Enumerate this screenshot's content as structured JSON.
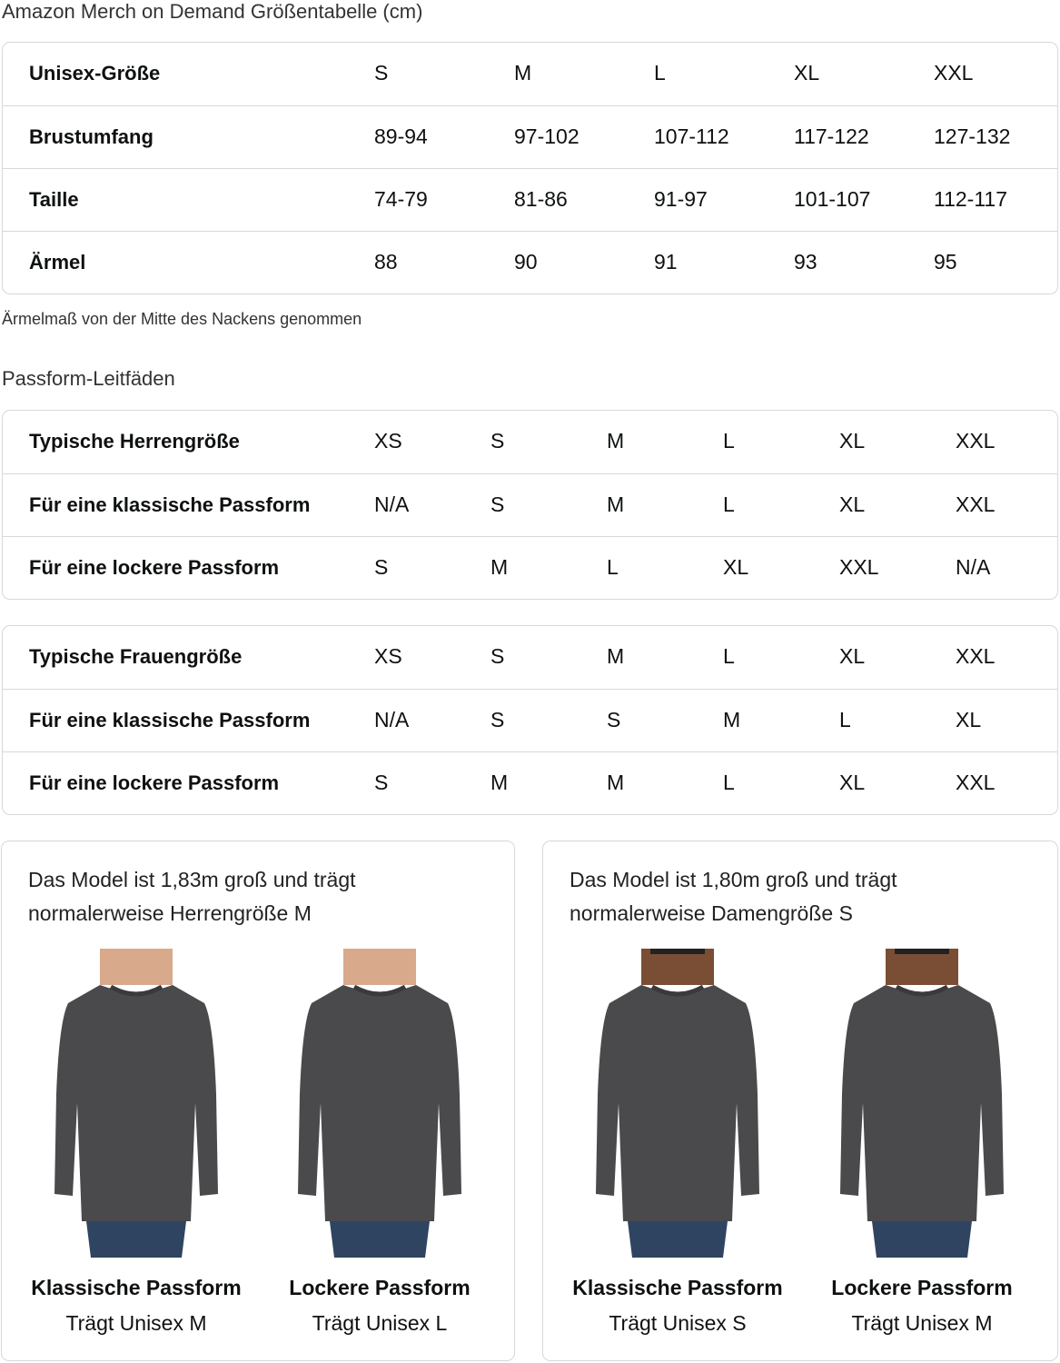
{
  "title": "Amazon Merch on Demand Größentabelle (cm)",
  "size_table": {
    "rows": [
      {
        "label": "Unisex-Größe",
        "values": [
          "S",
          "M",
          "L",
          "XL",
          "XXL"
        ]
      },
      {
        "label": "Brustumfang",
        "values": [
          "89-94",
          "97-102",
          "107-112",
          "117-122",
          "127-132"
        ]
      },
      {
        "label": "Taille",
        "values": [
          "74-79",
          "81-86",
          "91-97",
          "101-107",
          "112-117"
        ]
      },
      {
        "label": "Ärmel",
        "values": [
          "88",
          "90",
          "91",
          "93",
          "95"
        ]
      }
    ]
  },
  "note": "Ärmelmaß von der Mitte des Nackens genommen",
  "fit_heading": "Passform-Leitfäden",
  "men_table": {
    "rows": [
      {
        "label": "Typische Herrengröße",
        "values": [
          "XS",
          "S",
          "M",
          "L",
          "XL",
          "XXL"
        ]
      },
      {
        "label": "Für eine klassische Passform",
        "values": [
          "N/A",
          "S",
          "M",
          "L",
          "XL",
          "XXL"
        ]
      },
      {
        "label": "Für eine lockere Passform",
        "values": [
          "S",
          "M",
          "L",
          "XL",
          "XXL",
          "N/A"
        ]
      }
    ]
  },
  "women_table": {
    "rows": [
      {
        "label": "Typische Frauengröße",
        "values": [
          "XS",
          "S",
          "M",
          "L",
          "XL",
          "XXL"
        ]
      },
      {
        "label": "Für eine klassische Passform",
        "values": [
          "N/A",
          "S",
          "S",
          "M",
          "L",
          "XL"
        ]
      },
      {
        "label": "Für eine lockere Passform",
        "values": [
          "S",
          "M",
          "M",
          "L",
          "XL",
          "XXL"
        ]
      }
    ]
  },
  "cards": [
    {
      "text": [
        "Das Model ist 1,83m groß und trägt",
        "normalerweise Herrengröße M"
      ],
      "figures": [
        {
          "title": "Klassische Passform",
          "sub": "Trägt Unisex M"
        },
        {
          "title": "Lockere Passform",
          "sub": "Trägt Unisex L"
        }
      ],
      "skin": "#d9a98c"
    },
    {
      "text": [
        "Das Model ist 1,80m groß und trägt",
        "normalerweise Damengröße S"
      ],
      "figures": [
        {
          "title": "Klassische Passform",
          "sub": "Trägt Unisex S"
        },
        {
          "title": "Lockere Passform",
          "sub": "Trägt Unisex M"
        }
      ],
      "skin": "#7a4e35"
    }
  ],
  "colors": {
    "shirt": "#4a4a4d",
    "jeans": "#2f4460",
    "border": "#d5d9d9"
  }
}
